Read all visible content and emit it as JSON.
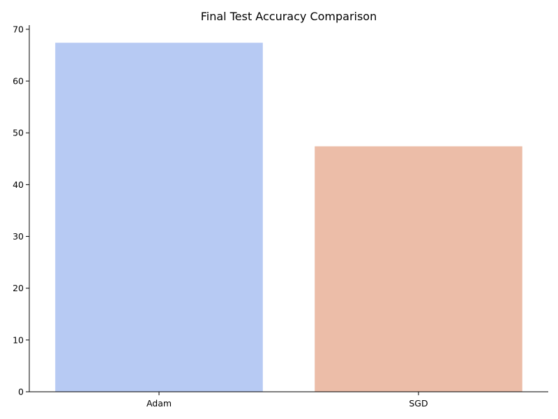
{
  "chart_data": {
    "type": "bar",
    "title": "Final Test Accuracy Comparison",
    "xlabel": "",
    "ylabel": "",
    "categories": [
      "Adam",
      "SGD"
    ],
    "values": [
      67.4,
      47.4
    ],
    "colors": [
      "#b7caf3",
      "#ecbda8"
    ],
    "ylim": [
      0,
      70.8
    ],
    "yticks": [
      0,
      10,
      20,
      30,
      40,
      50,
      60,
      70
    ],
    "grid": false,
    "legend": "none"
  }
}
